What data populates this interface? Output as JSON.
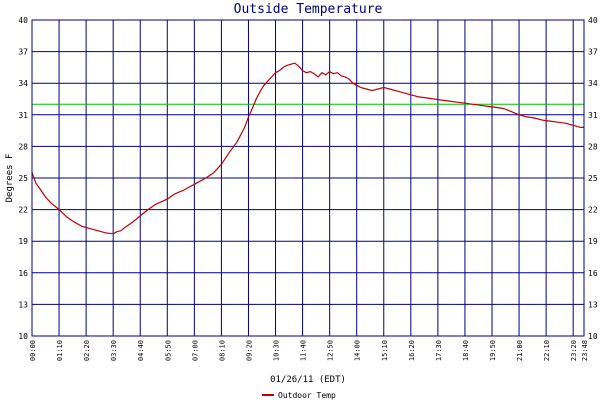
{
  "chart_data": {
    "type": "line",
    "title": "Outside Temperature",
    "xlabel": "01/26/11 (EDT)",
    "ylabel": "Degrees F",
    "ylim": [
      10,
      40
    ],
    "yticks": [
      10,
      13,
      16,
      19,
      22,
      25,
      28,
      31,
      34,
      37,
      40
    ],
    "xticks": [
      {
        "label": "00:00",
        "t": 0
      },
      {
        "label": "01:10",
        "t": 70
      },
      {
        "label": "02:20",
        "t": 140
      },
      {
        "label": "03:30",
        "t": 210
      },
      {
        "label": "04:40",
        "t": 280
      },
      {
        "label": "05:50",
        "t": 350
      },
      {
        "label": "07:00",
        "t": 420
      },
      {
        "label": "08:10",
        "t": 490
      },
      {
        "label": "09:20",
        "t": 560
      },
      {
        "label": "10:30",
        "t": 630
      },
      {
        "label": "11:40",
        "t": 700
      },
      {
        "label": "12:50",
        "t": 770
      },
      {
        "label": "14:00",
        "t": 840
      },
      {
        "label": "15:10",
        "t": 910
      },
      {
        "label": "16:20",
        "t": 980
      },
      {
        "label": "17:30",
        "t": 1050
      },
      {
        "label": "18:40",
        "t": 1120
      },
      {
        "label": "19:50",
        "t": 1190
      },
      {
        "label": "21:00",
        "t": 1260
      },
      {
        "label": "22:10",
        "t": 1330
      },
      {
        "label": "23:20",
        "t": 1400
      },
      {
        "label": "23:48",
        "t": 1428
      }
    ],
    "xlim": [
      0,
      1428
    ],
    "reference_line": {
      "value": 32,
      "color": "#00c000"
    },
    "series": [
      {
        "name": "Outdoor Temp",
        "color": "#c00000",
        "x": [
          0,
          10,
          20,
          35,
          50,
          60,
          70,
          90,
          110,
          130,
          150,
          170,
          190,
          210,
          220,
          230,
          240,
          260,
          280,
          300,
          320,
          350,
          370,
          390,
          410,
          430,
          450,
          470,
          490,
          510,
          530,
          550,
          560,
          570,
          580,
          590,
          600,
          610,
          620,
          630,
          640,
          650,
          660,
          670,
          680,
          690,
          700,
          710,
          720,
          730,
          740,
          750,
          760,
          770,
          780,
          790,
          800,
          810,
          820,
          830,
          840,
          850,
          860,
          870,
          880,
          890,
          900,
          910,
          920,
          930,
          940,
          950,
          960,
          970,
          980,
          990,
          1000,
          1020,
          1040,
          1060,
          1080,
          1100,
          1120,
          1140,
          1160,
          1180,
          1200,
          1220,
          1240,
          1260,
          1280,
          1300,
          1320,
          1340,
          1360,
          1380,
          1400,
          1410,
          1420,
          1428
        ],
        "y": [
          25.5,
          24.5,
          24.0,
          23.2,
          22.6,
          22.3,
          22.0,
          21.3,
          20.8,
          20.4,
          20.2,
          20.0,
          19.8,
          19.7,
          19.9,
          20.0,
          20.3,
          20.8,
          21.4,
          22.0,
          22.5,
          23.0,
          23.5,
          23.8,
          24.2,
          24.6,
          25.0,
          25.5,
          26.3,
          27.4,
          28.4,
          29.8,
          30.8,
          31.6,
          32.5,
          33.2,
          33.8,
          34.2,
          34.6,
          35.0,
          35.2,
          35.5,
          35.7,
          35.8,
          35.9,
          35.6,
          35.2,
          35.0,
          35.1,
          34.9,
          34.6,
          35.0,
          34.8,
          35.1,
          34.9,
          35.0,
          34.7,
          34.6,
          34.4,
          34.0,
          33.8,
          33.6,
          33.5,
          33.4,
          33.3,
          33.4,
          33.5,
          33.6,
          33.5,
          33.4,
          33.3,
          33.2,
          33.1,
          33.0,
          32.9,
          32.8,
          32.7,
          32.6,
          32.5,
          32.4,
          32.3,
          32.2,
          32.1,
          32.0,
          31.9,
          31.8,
          31.7,
          31.6,
          31.3,
          31.0,
          30.8,
          30.7,
          30.5,
          30.4,
          30.3,
          30.2,
          30.0,
          29.9,
          29.8,
          29.8
        ]
      }
    ],
    "legend": {
      "position": "bottom"
    },
    "grid": true
  }
}
